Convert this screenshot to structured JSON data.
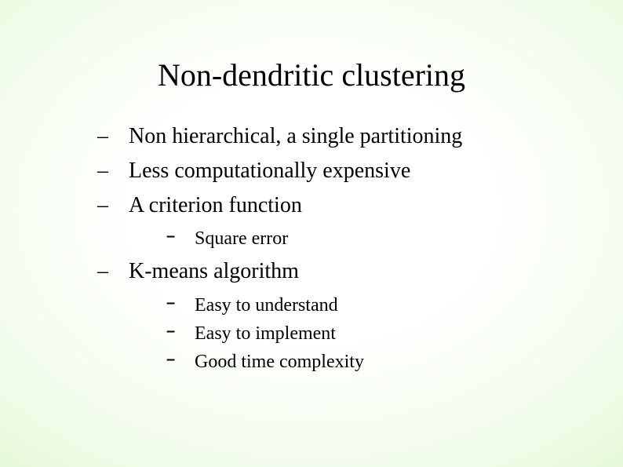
{
  "title": "Non-dendritic clustering",
  "bullets": {
    "b0": "Non hierarchical,  a single partitioning",
    "b1": "Less computationally expensive",
    "b2": "A criterion function",
    "b2_sub": {
      "s0": "Square error"
    },
    "b3": "K-means algorithm",
    "b3_sub": {
      "s0": "Easy to understand",
      "s1": "Easy to implement",
      "s2": "Good time complexity"
    }
  },
  "colors": {
    "text": "#000000",
    "bg_center": "#ffffff",
    "bg_edge": "#c8efb0"
  },
  "fonts": {
    "title_size_pt": 40,
    "level1_size_pt": 28,
    "level2_size_pt": 24,
    "family": "Times New Roman"
  }
}
